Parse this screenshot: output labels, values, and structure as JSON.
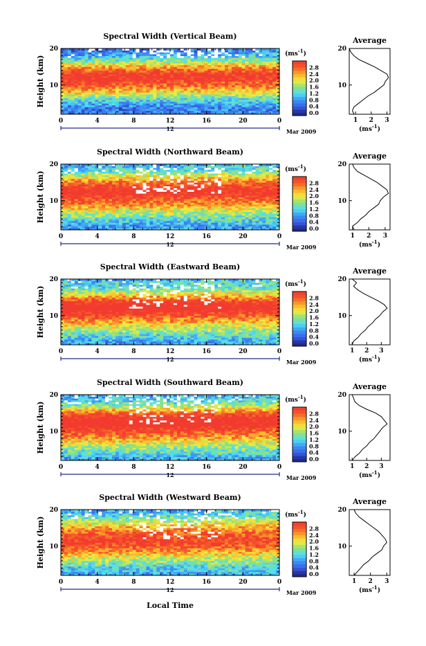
{
  "figure": {
    "time_label": "Local Time",
    "date_label": "Mar 2009",
    "colorbar_unit": "(ms",
    "colorbar_unit_sup": "-1",
    "colorbar_unit_close": ")",
    "average_title": "Average",
    "average_unit": "(ms",
    "average_unit_sup": "-1",
    "average_unit_close": ")",
    "height_label": "Height (km)",
    "date_marker": "12",
    "colors": {
      "red": "#f23a2f",
      "orange": "#fb9a2a",
      "yellow": "#f6ec3a",
      "green": "#8ee07a",
      "cyan": "#4fe0f5",
      "blue": "#3a7df2",
      "navy": "#202a8a"
    }
  },
  "chart_data": [
    {
      "type": "heatmap",
      "title": "Spectral Width (Vertical Beam)",
      "x_ticks": [
        "0",
        "4",
        "8",
        "12",
        "16",
        "20",
        "0"
      ],
      "y_ticks": [
        "20",
        "10"
      ],
      "xlim": [
        0,
        24
      ],
      "ylim": [
        2,
        20
      ],
      "colorbar_ticks": [
        "2.8",
        "2.4",
        "2.0",
        "1.6",
        "1.2",
        "0.8",
        "0.4",
        "0.0"
      ],
      "colorbar_range": [
        0,
        3.2
      ],
      "average_profile": {
        "x_ticks": [
          "1",
          "2",
          "3"
        ],
        "xlim": [
          0.6,
          3.2
        ],
        "y_ticks": [
          "20",
          "10"
        ],
        "heights": [
          2,
          3,
          4,
          5,
          6,
          7,
          8,
          9,
          10,
          11,
          12,
          13,
          14,
          15,
          16,
          17,
          18,
          19,
          20
        ],
        "values": [
          0.9,
          0.8,
          0.9,
          1.2,
          1.5,
          1.8,
          2.2,
          2.5,
          2.8,
          2.9,
          3.1,
          3.0,
          2.6,
          2.2,
          1.7,
          1.2,
          0.9,
          0.7,
          0.6
        ]
      }
    },
    {
      "type": "heatmap",
      "title": "Spectral Width (Northward Beam)",
      "x_ticks": [
        "0",
        "4",
        "8",
        "12",
        "16",
        "20",
        "0"
      ],
      "y_ticks": [
        "20",
        "10"
      ],
      "xlim": [
        0,
        24
      ],
      "ylim": [
        2,
        20
      ],
      "colorbar_ticks": [
        "2.8",
        "2.4",
        "2.0",
        "1.6",
        "1.2",
        "0.8",
        "0.4",
        "0.0"
      ],
      "colorbar_range": [
        0,
        3.2
      ],
      "average_profile": {
        "x_ticks": [
          "1",
          "2",
          "3"
        ],
        "xlim": [
          0.8,
          3.3
        ],
        "y_ticks": [
          "20",
          "10"
        ],
        "heights": [
          2,
          3,
          4,
          5,
          6,
          7,
          8,
          9,
          10,
          11,
          12,
          13,
          14,
          15,
          16,
          17,
          18,
          19,
          20
        ],
        "values": [
          1.1,
          1.0,
          1.3,
          1.5,
          1.8,
          2.0,
          2.3,
          2.6,
          2.7,
          2.9,
          3.2,
          3.1,
          2.8,
          2.5,
          2.1,
          1.7,
          1.3,
          1.1,
          1.0
        ]
      }
    },
    {
      "type": "heatmap",
      "title": "Spectral Width (Eastward Beam)",
      "x_ticks": [
        "0",
        "4",
        "8",
        "12",
        "16",
        "20",
        "0"
      ],
      "y_ticks": [
        "20",
        "10"
      ],
      "xlim": [
        0,
        24
      ],
      "ylim": [
        2,
        20
      ],
      "colorbar_ticks": [
        "2.8",
        "2.4",
        "2.0",
        "1.6",
        "1.2",
        "0.8",
        "0.4",
        "0.0"
      ],
      "colorbar_range": [
        0,
        3.2
      ],
      "average_profile": {
        "x_ticks": [
          "1",
          "2",
          "3"
        ],
        "xlim": [
          0.8,
          3.6
        ],
        "y_ticks": [
          "20",
          "10"
        ],
        "heights": [
          2,
          3,
          4,
          5,
          6,
          7,
          8,
          9,
          10,
          11,
          12,
          13,
          14,
          15,
          16,
          17,
          18,
          19,
          20
        ],
        "values": [
          1.0,
          1.1,
          1.4,
          1.6,
          1.9,
          2.1,
          2.4,
          2.6,
          2.9,
          3.1,
          3.4,
          3.2,
          2.8,
          2.3,
          1.8,
          1.4,
          1.1,
          1.3,
          1.0
        ]
      }
    },
    {
      "type": "heatmap",
      "title": "Spectral Width (Southward Beam)",
      "x_ticks": [
        "0",
        "4",
        "8",
        "12",
        "16",
        "20",
        "0"
      ],
      "y_ticks": [
        "20",
        "10"
      ],
      "xlim": [
        0,
        24
      ],
      "ylim": [
        2,
        20
      ],
      "colorbar_ticks": [
        "2.8",
        "2.4",
        "2.0",
        "1.6",
        "1.2",
        "0.8",
        "0.4",
        "0.0"
      ],
      "colorbar_range": [
        0,
        3.2
      ],
      "average_profile": {
        "x_ticks": [
          "1",
          "2",
          "3"
        ],
        "xlim": [
          0.8,
          3.6
        ],
        "y_ticks": [
          "20",
          "10"
        ],
        "heights": [
          2,
          3,
          4,
          5,
          6,
          7,
          8,
          9,
          10,
          11,
          12,
          13,
          14,
          15,
          16,
          17,
          18,
          19,
          20
        ],
        "values": [
          1.0,
          1.2,
          1.5,
          1.7,
          2.0,
          2.2,
          2.5,
          2.7,
          2.9,
          3.1,
          3.4,
          3.2,
          3.0,
          2.6,
          2.0,
          1.5,
          1.2,
          1.1,
          1.0
        ]
      }
    },
    {
      "type": "heatmap",
      "title": "Spectral Width (Westward Beam)",
      "x_ticks": [
        "0",
        "4",
        "8",
        "12",
        "16",
        "20",
        "0"
      ],
      "y_ticks": [
        "20",
        "10"
      ],
      "xlim": [
        0,
        24
      ],
      "ylim": [
        2,
        20
      ],
      "colorbar_ticks": [
        "2.8",
        "2.4",
        "2.0",
        "1.6",
        "1.2",
        "0.8",
        "0.4",
        "0.0"
      ],
      "colorbar_range": [
        0,
        3.2
      ],
      "average_profile": {
        "x_ticks": [
          "1",
          "2",
          "3"
        ],
        "xlim": [
          0.7,
          3.2
        ],
        "y_ticks": [
          "20",
          "10"
        ],
        "heights": [
          2,
          3,
          4,
          5,
          6,
          7,
          8,
          9,
          10,
          11,
          12,
          13,
          14,
          15,
          16,
          17,
          18,
          19,
          20
        ],
        "values": [
          1.0,
          1.2,
          1.4,
          1.6,
          1.9,
          2.1,
          2.4,
          2.7,
          2.8,
          3.0,
          2.9,
          2.7,
          2.5,
          2.2,
          1.9,
          1.6,
          1.3,
          1.1,
          1.0
        ]
      }
    }
  ]
}
